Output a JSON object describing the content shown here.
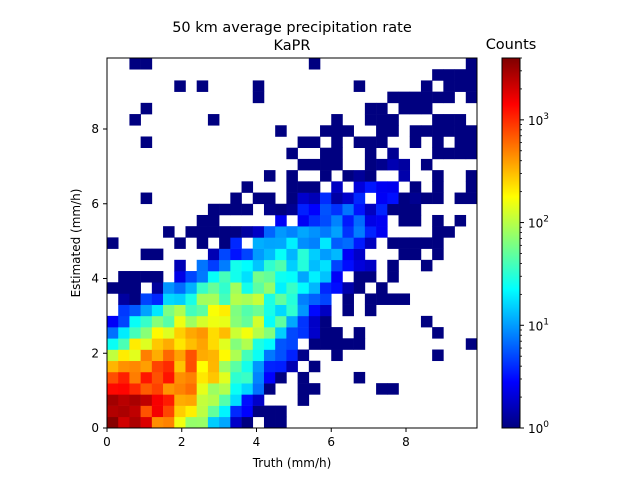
{
  "chart_data": {
    "type": "heatmap",
    "title": "50 km average precipitation rate",
    "subtitle": "KaPR",
    "xlabel": "Truth (mm/h)",
    "ylabel": "Estimated (mm/h)",
    "xlim": [
      0,
      9.9
    ],
    "ylim": [
      0,
      9.9
    ],
    "bin_width": 0.3,
    "x_ticks": [
      0,
      2,
      4,
      6,
      8
    ],
    "y_ticks": [
      0,
      2,
      4,
      6,
      8
    ],
    "x_tick_labels": [
      "0",
      "2",
      "4",
      "6",
      "8"
    ],
    "y_tick_labels": [
      "0",
      "2",
      "4",
      "6",
      "8"
    ],
    "colormap": "jet",
    "color_scale": "log",
    "colorbar": {
      "label": "Counts",
      "range": [
        1,
        4000
      ],
      "ticks": [
        1,
        10,
        100,
        1000
      ],
      "tick_labels": [
        "10^0",
        "10^1",
        "10^2",
        "10^3"
      ]
    },
    "grid": false,
    "empty_bins_color": "#ffffff",
    "description_of_bins": "2D histogram of estimated vs truth precipitation rate; counts peak near origin (~4000) and decay along the 1:1 diagonal with a scattered sparse tail toward higher values."
  }
}
